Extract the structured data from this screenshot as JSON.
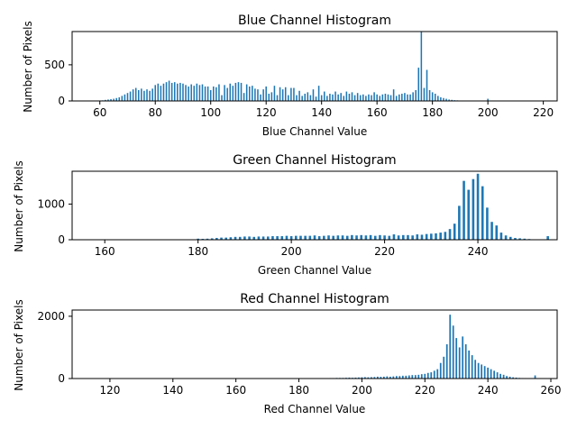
{
  "chart_data": [
    {
      "type": "bar",
      "title": "Blue Channel Histogram",
      "xlabel": "Blue Channel Value",
      "ylabel": "Number of Pixels",
      "xlim": [
        50,
        225
      ],
      "ylim": [
        0,
        960
      ],
      "xticks": [
        60,
        80,
        100,
        120,
        140,
        160,
        180,
        200,
        220
      ],
      "yticks": [
        0,
        500
      ],
      "color": "#1f77b4",
      "series": [
        {
          "x": [
            60,
            61,
            62,
            63,
            64,
            65,
            66,
            67,
            68,
            69,
            70,
            71,
            72,
            73,
            74,
            75,
            76,
            77,
            78,
            79,
            80,
            81,
            82,
            83,
            84,
            85,
            86,
            87,
            88,
            89,
            90,
            91,
            92,
            93,
            94,
            95,
            96,
            97,
            98,
            99,
            100,
            101,
            102,
            103,
            104,
            105,
            106,
            107,
            108,
            109,
            110,
            111,
            112,
            113,
            114,
            115,
            116,
            117,
            118,
            119,
            120,
            121,
            122,
            123,
            124,
            125,
            126,
            127,
            128,
            129,
            130,
            131,
            132,
            133,
            134,
            135,
            136,
            137,
            138,
            139,
            140,
            141,
            142,
            143,
            144,
            145,
            146,
            147,
            148,
            149,
            150,
            151,
            152,
            153,
            154,
            155,
            156,
            157,
            158,
            159,
            160,
            161,
            162,
            163,
            164,
            165,
            166,
            167,
            168,
            169,
            170,
            171,
            172,
            173,
            174,
            175,
            176,
            177,
            178,
            179,
            180,
            181,
            182,
            183,
            184,
            185,
            186,
            187,
            188,
            189,
            190,
            191,
            192,
            193,
            194,
            195,
            196,
            197,
            198,
            199,
            200,
            201
          ],
          "values": [
            5,
            8,
            15,
            20,
            25,
            30,
            40,
            50,
            70,
            90,
            110,
            130,
            160,
            180,
            150,
            170,
            140,
            160,
            140,
            170,
            220,
            240,
            210,
            240,
            260,
            280,
            250,
            260,
            240,
            250,
            240,
            220,
            200,
            230,
            210,
            240,
            220,
            230,
            200,
            200,
            150,
            200,
            190,
            230,
            80,
            220,
            180,
            240,
            210,
            250,
            260,
            250,
            110,
            230,
            200,
            210,
            170,
            160,
            90,
            160,
            200,
            100,
            120,
            210,
            80,
            190,
            160,
            190,
            80,
            180,
            180,
            80,
            140,
            70,
            100,
            120,
            80,
            160,
            60,
            210,
            80,
            130,
            70,
            100,
            90,
            130,
            90,
            110,
            70,
            130,
            100,
            120,
            80,
            110,
            80,
            90,
            70,
            90,
            80,
            120,
            90,
            70,
            90,
            100,
            90,
            80,
            160,
            70,
            90,
            100,
            110,
            90,
            90,
            120,
            150,
            460,
            960,
            180,
            430,
            150,
            120,
            100,
            70,
            50,
            40,
            30,
            20,
            15,
            10,
            8,
            6,
            5,
            4,
            3,
            2,
            2,
            1,
            1,
            1,
            1,
            30,
            3
          ]
        }
      ]
    },
    {
      "type": "bar",
      "title": "Green Channel Histogram",
      "xlabel": "Green Channel Value",
      "ylabel": "Number of Pixels",
      "xlim": [
        153,
        257
      ],
      "ylim": [
        0,
        1920
      ],
      "xticks": [
        160,
        180,
        200,
        220,
        240
      ],
      "yticks": [
        0,
        1000
      ],
      "color": "#1f77b4",
      "series": [
        {
          "x": [
            160,
            165,
            170,
            175,
            180,
            181,
            182,
            183,
            184,
            185,
            186,
            187,
            188,
            189,
            190,
            191,
            192,
            193,
            194,
            195,
            196,
            197,
            198,
            199,
            200,
            201,
            202,
            203,
            204,
            205,
            206,
            207,
            208,
            209,
            210,
            211,
            212,
            213,
            214,
            215,
            216,
            217,
            218,
            219,
            220,
            221,
            222,
            223,
            224,
            225,
            226,
            227,
            228,
            229,
            230,
            231,
            232,
            233,
            234,
            235,
            236,
            237,
            238,
            239,
            240,
            241,
            242,
            243,
            244,
            245,
            246,
            247,
            248,
            249,
            250,
            251,
            252,
            253,
            254,
            255
          ],
          "values": [
            10,
            5,
            10,
            10,
            30,
            25,
            30,
            40,
            50,
            60,
            60,
            70,
            80,
            80,
            90,
            90,
            80,
            90,
            90,
            90,
            100,
            100,
            100,
            110,
            100,
            110,
            110,
            110,
            110,
            120,
            100,
            110,
            120,
            110,
            120,
            120,
            110,
            130,
            120,
            130,
            120,
            130,
            110,
            130,
            120,
            110,
            150,
            120,
            130,
            130,
            120,
            150,
            140,
            160,
            170,
            180,
            200,
            220,
            300,
            450,
            950,
            1650,
            1400,
            1700,
            1850,
            1500,
            900,
            500,
            400,
            200,
            120,
            80,
            50,
            40,
            30,
            20,
            10,
            10,
            5,
            100
          ]
        }
      ]
    },
    {
      "type": "bar",
      "title": "Red Channel Histogram",
      "xlabel": "Red Channel Value",
      "ylabel": "Number of Pixels",
      "xlim": [
        108,
        262
      ],
      "ylim": [
        0,
        2200
      ],
      "xticks": [
        120,
        140,
        160,
        180,
        200,
        220,
        240,
        260
      ],
      "yticks": [
        0,
        2000
      ],
      "color": "#1f77b4",
      "series": [
        {
          "x": [
            117,
            130,
            140,
            150,
            160,
            170,
            180,
            188,
            189,
            190,
            191,
            192,
            193,
            194,
            195,
            196,
            197,
            198,
            199,
            200,
            201,
            202,
            203,
            204,
            205,
            206,
            207,
            208,
            209,
            210,
            211,
            212,
            213,
            214,
            215,
            216,
            217,
            218,
            219,
            220,
            221,
            222,
            223,
            224,
            225,
            226,
            227,
            228,
            229,
            230,
            231,
            232,
            233,
            234,
            235,
            236,
            237,
            238,
            239,
            240,
            241,
            242,
            243,
            244,
            245,
            246,
            247,
            248,
            249,
            250,
            251,
            252,
            255
          ],
          "values": [
            5,
            3,
            3,
            3,
            3,
            3,
            3,
            10,
            10,
            15,
            15,
            20,
            20,
            20,
            25,
            30,
            25,
            30,
            35,
            40,
            45,
            40,
            45,
            50,
            60,
            55,
            60,
            70,
            60,
            70,
            80,
            80,
            90,
            90,
            100,
            110,
            110,
            120,
            140,
            150,
            180,
            200,
            250,
            300,
            500,
            700,
            1100,
            2050,
            1700,
            1300,
            1000,
            1350,
            1100,
            900,
            750,
            600,
            500,
            450,
            400,
            350,
            300,
            250,
            200,
            150,
            120,
            80,
            60,
            40,
            30,
            20,
            15,
            10,
            100
          ]
        }
      ]
    }
  ]
}
